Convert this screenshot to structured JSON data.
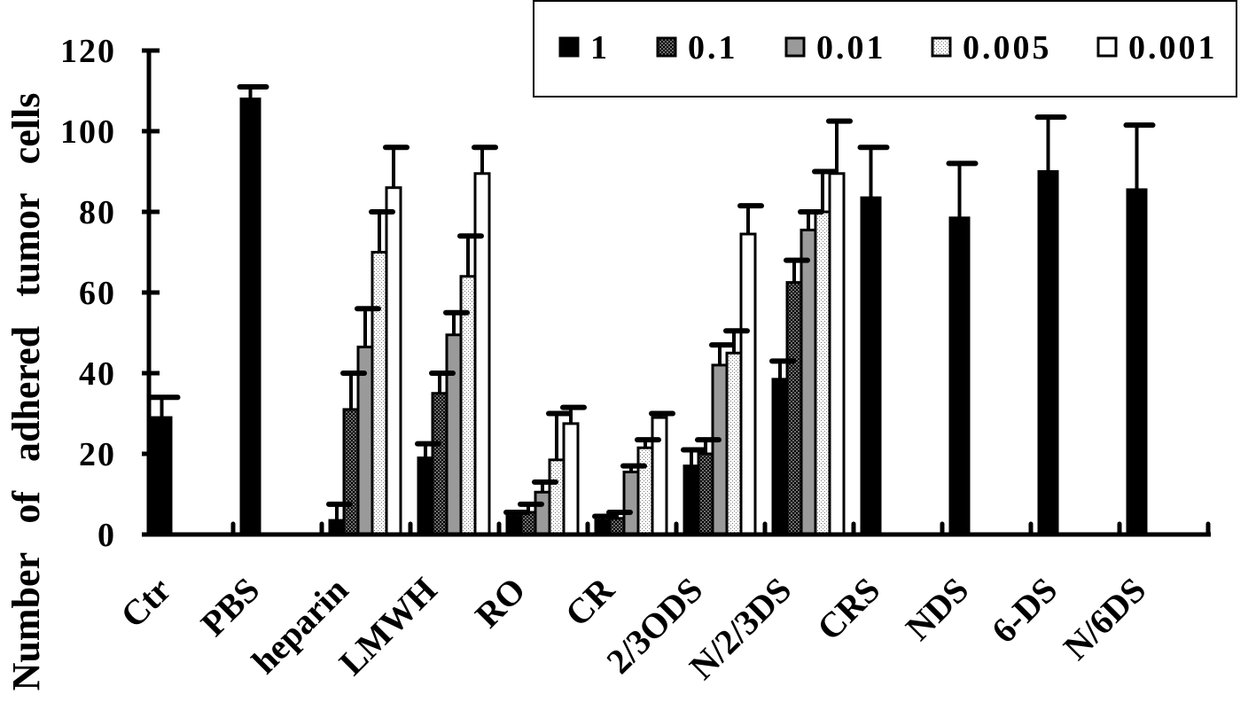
{
  "chart_data": {
    "type": "bar",
    "categories": [
      "Ctr",
      "PBS",
      "heparin",
      "LMWH",
      "RO",
      "CR",
      "2/3ODS",
      "N/2/3DS",
      "CRS",
      "NDS",
      "6-DS",
      "N/6DS"
    ],
    "series": [
      {
        "name": "1",
        "color": "#000000",
        "dotted": false,
        "values": [
          29,
          108,
          3.5,
          19,
          4.5,
          3.5,
          17,
          38.5,
          83.5,
          78.5,
          90,
          85.5
        ],
        "errors": [
          5,
          3,
          4,
          3.5,
          1,
          1,
          4,
          4.5,
          12.5,
          13.5,
          13.5,
          16
        ]
      },
      {
        "name": "0.1",
        "color": "#6a6a6a",
        "dot_color": "#000000",
        "dotted": true,
        "values": [
          null,
          null,
          31,
          35,
          5.5,
          4,
          20,
          62.5,
          null,
          null,
          null,
          null
        ],
        "errors": [
          null,
          null,
          9,
          5,
          2,
          1.5,
          3.5,
          5.5,
          null,
          null,
          null,
          null
        ]
      },
      {
        "name": "0.01",
        "color": "#9a9a9a",
        "dotted": false,
        "values": [
          null,
          null,
          46.5,
          49.5,
          10.5,
          15.5,
          42,
          75.5,
          null,
          null,
          null,
          null
        ],
        "errors": [
          null,
          null,
          9.5,
          5.5,
          2.5,
          1.5,
          5,
          4.5,
          null,
          null,
          null,
          null
        ]
      },
      {
        "name": "0.005",
        "color": "#ffffff",
        "dot_color": "#777777",
        "dotted": true,
        "values": [
          null,
          null,
          70,
          64,
          18.5,
          21.5,
          45,
          80,
          null,
          null,
          null,
          null
        ],
        "errors": [
          null,
          null,
          10,
          10,
          11.5,
          2,
          5.5,
          10,
          null,
          null,
          null,
          null
        ]
      },
      {
        "name": "0.001",
        "color": "#ffffff",
        "dotted": false,
        "values": [
          null,
          null,
          86,
          89.5,
          27.5,
          29,
          74.5,
          89.5,
          null,
          null,
          null,
          null
        ],
        "errors": [
          null,
          null,
          10,
          6.5,
          4,
          1,
          7,
          13,
          null,
          null,
          null,
          null
        ]
      }
    ],
    "ylabel": "Number of adhered tumor cells",
    "ylim": [
      0,
      120
    ],
    "yticks": [
      0,
      20,
      40,
      60,
      80,
      100,
      120
    ],
    "grid": false,
    "legend": "top-right",
    "error_bars": true
  }
}
